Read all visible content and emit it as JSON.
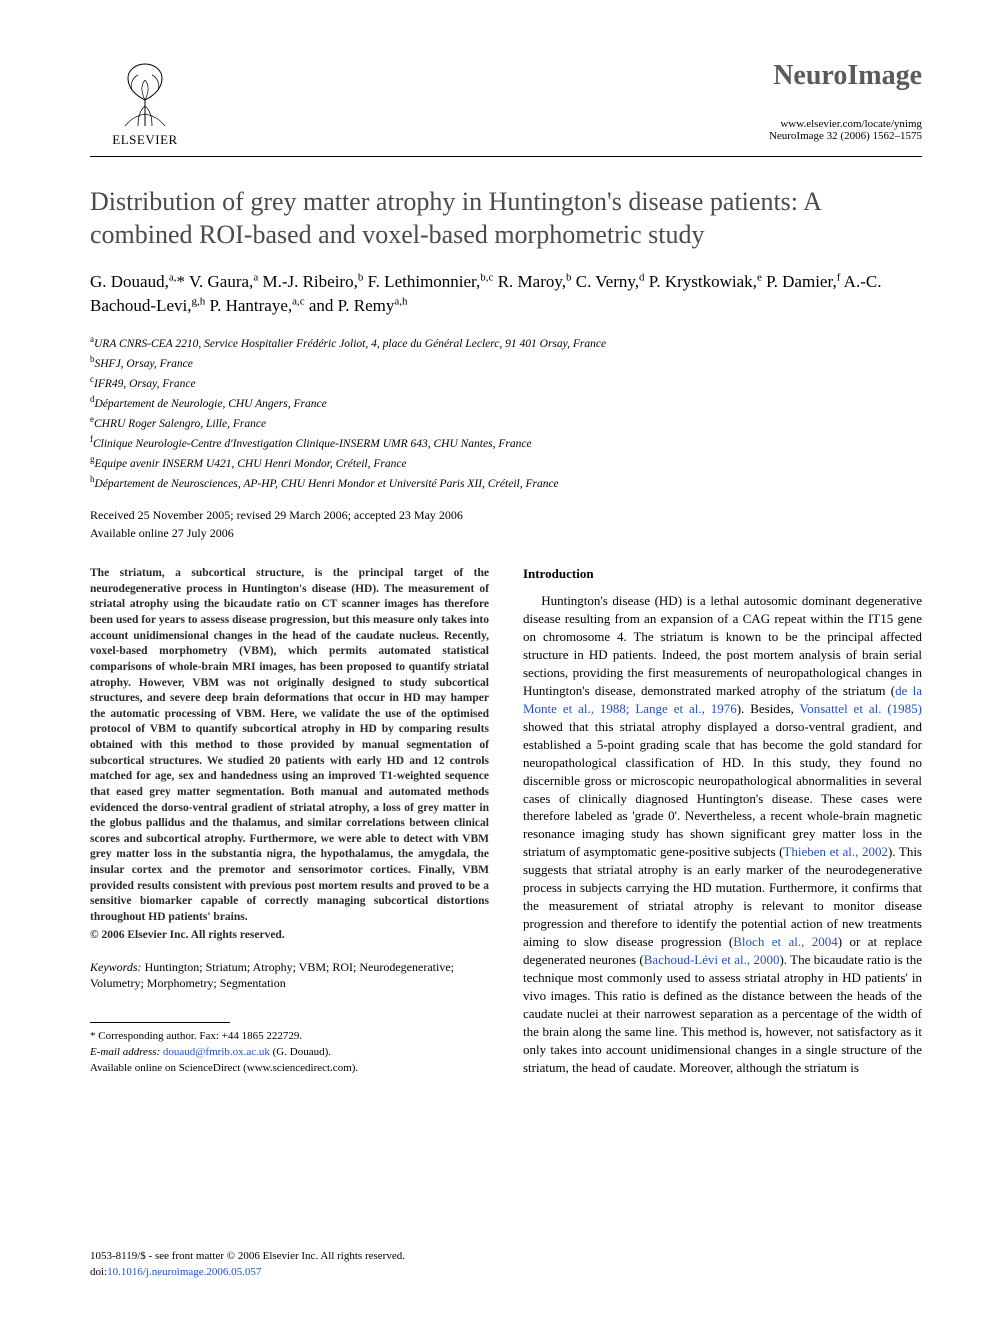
{
  "header": {
    "publisher_label": "ELSEVIER",
    "journal_title": "NeuroImage",
    "journal_url": "www.elsevier.com/locate/ynimg",
    "journal_cite": "NeuroImage 32 (2006) 1562–1575"
  },
  "article": {
    "title": "Distribution of grey matter atrophy in Huntington's disease patients: A combined ROI-based and voxel-based morphometric study",
    "authors_html": "G. Douaud,<sup>a,</sup>* V. Gaura,<sup>a</sup> M.-J. Ribeiro,<sup>b</sup> F. Lethimonnier,<sup>b,c</sup> R. Maroy,<sup>b</sup> C. Verny,<sup>d</sup> P. Krystkowiak,<sup>e</sup> P. Damier,<sup>f</sup> A.-C. Bachoud-Levi,<sup>g,h</sup> P. Hantraye,<sup>a,c</sup> and P. Remy<sup>a,h</sup>",
    "affiliations": [
      {
        "sup": "a",
        "text": "URA CNRS-CEA 2210, Service Hospitalier Frédéric Joliot, 4, place du Général Leclerc, 91 401 Orsay, France"
      },
      {
        "sup": "b",
        "text": "SHFJ, Orsay, France"
      },
      {
        "sup": "c",
        "text": "IFR49, Orsay, France"
      },
      {
        "sup": "d",
        "text": "Département de Neurologie, CHU Angers, France"
      },
      {
        "sup": "e",
        "text": "CHRU Roger Salengro, Lille, France"
      },
      {
        "sup": "f",
        "text": "Clinique Neurologie-Centre d'Investigation Clinique-INSERM UMR 643, CHU Nantes, France"
      },
      {
        "sup": "g",
        "text": "Equipe avenir INSERM U421, CHU Henri Mondor, Créteil, France"
      },
      {
        "sup": "h",
        "text": "Département de Neurosciences, AP-HP, CHU Henri Mondor et Université Paris XII, Créteil, France"
      }
    ],
    "dates_line1": "Received 25 November 2005; revised 29 March 2006; accepted 23 May 2006",
    "dates_line2": "Available online 27 July 2006"
  },
  "left_column": {
    "abstract": "The striatum, a subcortical structure, is the principal target of the neurodegenerative process in Huntington's disease (HD). The measurement of striatal atrophy using the bicaudate ratio on CT scanner images has therefore been used for years to assess disease progression, but this measure only takes into account unidimensional changes in the head of the caudate nucleus. Recently, voxel-based morphometry (VBM), which permits automated statistical comparisons of whole-brain MRI images, has been proposed to quantify striatal atrophy. However, VBM was not originally designed to study subcortical structures, and severe deep brain deformations that occur in HD may hamper the automatic processing of VBM. Here, we validate the use of the optimised protocol of VBM to quantify subcortical atrophy in HD by comparing results obtained with this method to those provided by manual segmentation of subcortical structures. We studied 20 patients with early HD and 12 controls matched for age, sex and handedness using an improved T1-weighted sequence that eased grey matter segmentation. Both manual and automated methods evidenced the dorso-ventral gradient of striatal atrophy, a loss of grey matter in the globus pallidus and the thalamus, and similar correlations between clinical scores and subcortical atrophy. Furthermore, we were able to detect with VBM grey matter loss in the substantia nigra, the hypothalamus, the amygdala, the insular cortex and the premotor and sensorimotor cortices. Finally, VBM provided results consistent with previous post mortem results and proved to be a sensitive biomarker capable of correctly managing subcortical distortions throughout HD patients' brains.",
    "copyright": "© 2006 Elsevier Inc. All rights reserved.",
    "keywords_label": "Keywords:",
    "keywords": "Huntington; Striatum; Atrophy; VBM; ROI; Neurodegenerative; Volumetry; Morphometry; Segmentation",
    "footnote_corr": "* Corresponding author. Fax: +44 1865 222729.",
    "footnote_email_label": "E-mail address:",
    "footnote_email": "douaud@fmrib.ox.ac.uk",
    "footnote_email_tail": "(G. Douaud).",
    "footnote_online": "Available online on ScienceDirect (www.sciencedirect.com)."
  },
  "right_column": {
    "heading": "Introduction",
    "body_html": "Huntington's disease (HD) is a lethal autosomic dominant degenerative disease resulting from an expansion of a CAG repeat within the IT15 gene on chromosome 4. The striatum is known to be the principal affected structure in HD patients. Indeed, the post mortem analysis of brain serial sections, providing the first measurements of neuropathological changes in Huntington's disease, demonstrated marked atrophy of the striatum (<span class=\"cite\">de la Monte et al., 1988; Lange et al., 1976</span>). Besides, <span class=\"cite\">Vonsattel et al. (1985)</span> showed that this striatal atrophy displayed a dorso-ventral gradient, and established a 5-point grading scale that has become the gold standard for neuropathological classification of HD. In this study, they found no discernible gross or microscopic neuropathological abnormalities in several cases of clinically diagnosed Huntington's disease. These cases were therefore labeled as 'grade 0'. Nevertheless, a recent whole-brain magnetic resonance imaging study has shown significant grey matter loss in the striatum of asymptomatic gene-positive subjects (<span class=\"cite\">Thieben et al., 2002</span>). This suggests that striatal atrophy is an early marker of the neurodegenerative process in subjects carrying the HD mutation. Furthermore, it confirms that the measurement of striatal atrophy is relevant to monitor disease progression and therefore to identify the potential action of new treatments aiming to slow disease progression (<span class=\"cite\">Bloch et al., 2004</span>) or at replace degenerated neurones (<span class=\"cite\">Bachoud-Lévi et al., 2000</span>). The bicaudate ratio is the technique most commonly used to assess striatal atrophy in HD patients' in vivo images. This ratio is defined as the distance between the heads of the caudate nuclei at their narrowest separation as a percentage of the width of the brain along the same line. This method is, however, not satisfactory as it only takes into account unidimensional changes in a single structure of the striatum, the head of caudate. Moreover, although the striatum is"
  },
  "bottom": {
    "line1": "1053-8119/$ - see front matter © 2006 Elsevier Inc. All rights reserved.",
    "doi_label": "doi:",
    "doi": "10.1016/j.neuroimage.2006.05.057"
  },
  "colors": {
    "link": "#2050c0",
    "heading_grey": "#4a4a4a"
  }
}
